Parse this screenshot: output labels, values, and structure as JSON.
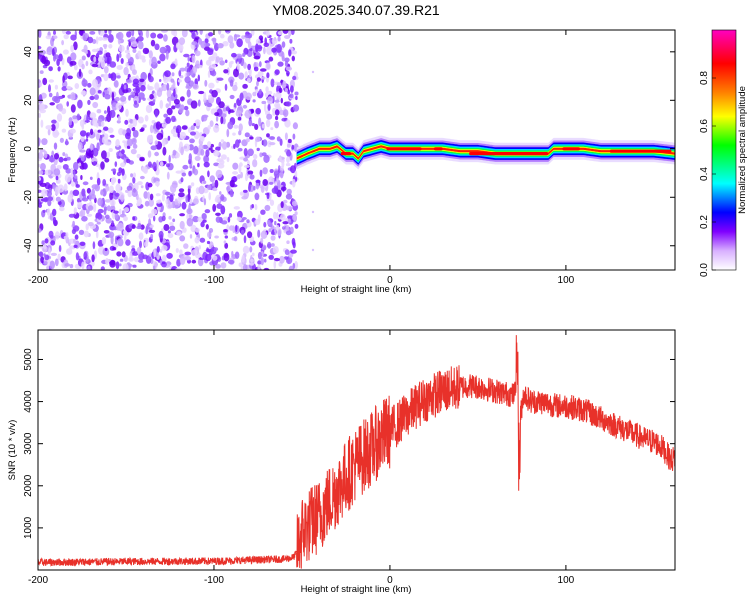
{
  "chart_data": [
    {
      "type": "heatmap",
      "title": "YM08.2025.340.07.39.R21",
      "xlabel": "Height of straight line (km)",
      "ylabel": "Frequency (Hz)",
      "xlim": [
        -200,
        162
      ],
      "ylim": [
        -50,
        49
      ],
      "xticks": [
        -200,
        -100,
        0,
        100
      ],
      "xtick_labels": [
        "-200",
        "-100",
        "0",
        "100"
      ],
      "yticks": [
        -40,
        -20,
        0,
        20,
        40
      ],
      "ytick_labels": [
        "-40",
        "-20",
        "0",
        "20",
        "40"
      ],
      "noise_region_x": [
        -200,
        -53
      ],
      "signal_start_x": -53,
      "signal_track": {
        "x": [
          -53,
          -47,
          -40,
          -34,
          -30,
          -25,
          -21,
          -18,
          -15,
          -10,
          -5,
          0,
          10,
          20,
          30,
          40,
          50,
          60,
          70,
          80,
          90,
          93,
          100,
          110,
          120,
          130,
          140,
          150,
          162
        ],
        "freq_hz": [
          -4,
          -2,
          0,
          0,
          1,
          -2,
          -2,
          -4,
          -1,
          0,
          1,
          0,
          0,
          0,
          0,
          -1,
          -1,
          -2,
          -2,
          -2,
          -2,
          0,
          0,
          0,
          -1,
          -1,
          -1,
          -1,
          -2
        ]
      },
      "colorbar": {
        "label": "Normalized spectral amplitude",
        "range": [
          0,
          1
        ],
        "ticks": [
          0.0,
          0.2,
          0.4,
          0.6,
          0.8
        ],
        "tick_labels": [
          "0.0",
          "0.2",
          "0.4",
          "0.6",
          "0.8"
        ],
        "colors": [
          "#ffffff",
          "#b040ff",
          "#0000ff",
          "#00ffff",
          "#00ff00",
          "#ffff00",
          "#ff8000",
          "#ff0000",
          "#ff00c0"
        ]
      }
    },
    {
      "type": "line",
      "xlabel": "Height of straight line (km)",
      "ylabel": "SNR (10 * v/v)",
      "xlim": [
        -200,
        162
      ],
      "ylim": [
        0,
        5700
      ],
      "xticks": [
        -200,
        -100,
        0,
        100
      ],
      "xtick_labels": [
        "-200",
        "-100",
        "0",
        "100"
      ],
      "yticks": [
        1000,
        2000,
        3000,
        4000,
        5000
      ],
      "ytick_labels": [
        "1000",
        "2000",
        "3000",
        "4000",
        "5000"
      ],
      "color": "#e8312a",
      "series": [
        {
          "name": "SNR",
          "x": [
            -200,
            -150,
            -100,
            -60,
            -55,
            -53,
            -50,
            -45,
            -40,
            -35,
            -30,
            -25,
            -20,
            -15,
            -10,
            -5,
            0,
            5,
            10,
            15,
            20,
            25,
            30,
            35,
            40,
            45,
            50,
            55,
            60,
            65,
            70,
            72,
            74,
            76,
            80,
            85,
            90,
            95,
            100,
            105,
            110,
            115,
            120,
            125,
            130,
            135,
            140,
            145,
            150,
            155,
            160,
            162
          ],
          "y": [
            180,
            200,
            210,
            260,
            300,
            400,
            900,
            1100,
            1300,
            1600,
            1900,
            2200,
            2500,
            2700,
            2900,
            3150,
            3300,
            3500,
            3700,
            3900,
            4050,
            4150,
            4250,
            4300,
            4350,
            4380,
            4350,
            4300,
            4250,
            4200,
            4150,
            4300,
            3600,
            4200,
            4000,
            4000,
            3950,
            3900,
            3900,
            3850,
            3800,
            3700,
            3600,
            3500,
            3400,
            3300,
            3200,
            3100,
            3050,
            2900,
            2600,
            2700
          ]
        }
      ]
    }
  ]
}
